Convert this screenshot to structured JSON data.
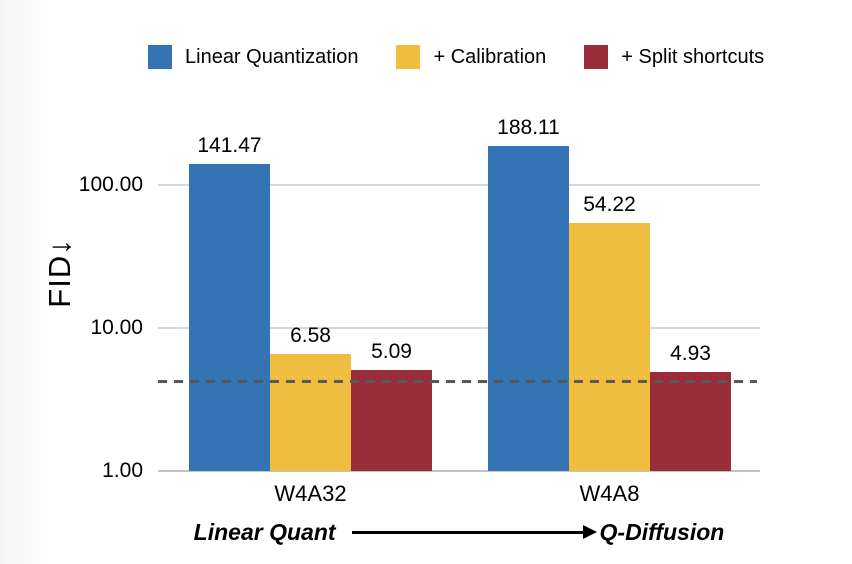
{
  "chart_data": {
    "type": "bar",
    "yscale": "log",
    "ylabel": "FID↓",
    "categories": [
      "W4A32",
      "W4A8"
    ],
    "series": [
      {
        "name": "Linear Quantization",
        "color": "#3574B4",
        "values": [
          141.47,
          188.11
        ]
      },
      {
        "name": "+ Calibration",
        "color": "#EFBE41",
        "values": [
          6.58,
          54.22
        ]
      },
      {
        "name": "+ Split shortcuts",
        "color": "#9A2D3A",
        "values": [
          5.09,
          4.93
        ]
      }
    ],
    "yticks": [
      {
        "label": "100.00",
        "value": 100
      },
      {
        "label": "10.00",
        "value": 10
      },
      {
        "label": "1.00",
        "value": 1
      }
    ],
    "ylim": [
      1,
      330
    ],
    "grid": "horizontal",
    "legend_position": "top",
    "reference_line": {
      "value": 4.2,
      "style": "dashed",
      "color": "#58585a"
    },
    "footer": {
      "left_label": "Linear Quant",
      "right_label": "Q-Diffusion",
      "arrow": "→"
    }
  },
  "colors": {
    "background": "#ffffff",
    "gridline": "#d8d8d8",
    "axisline": "#c2c2c6",
    "text": "#000000"
  }
}
